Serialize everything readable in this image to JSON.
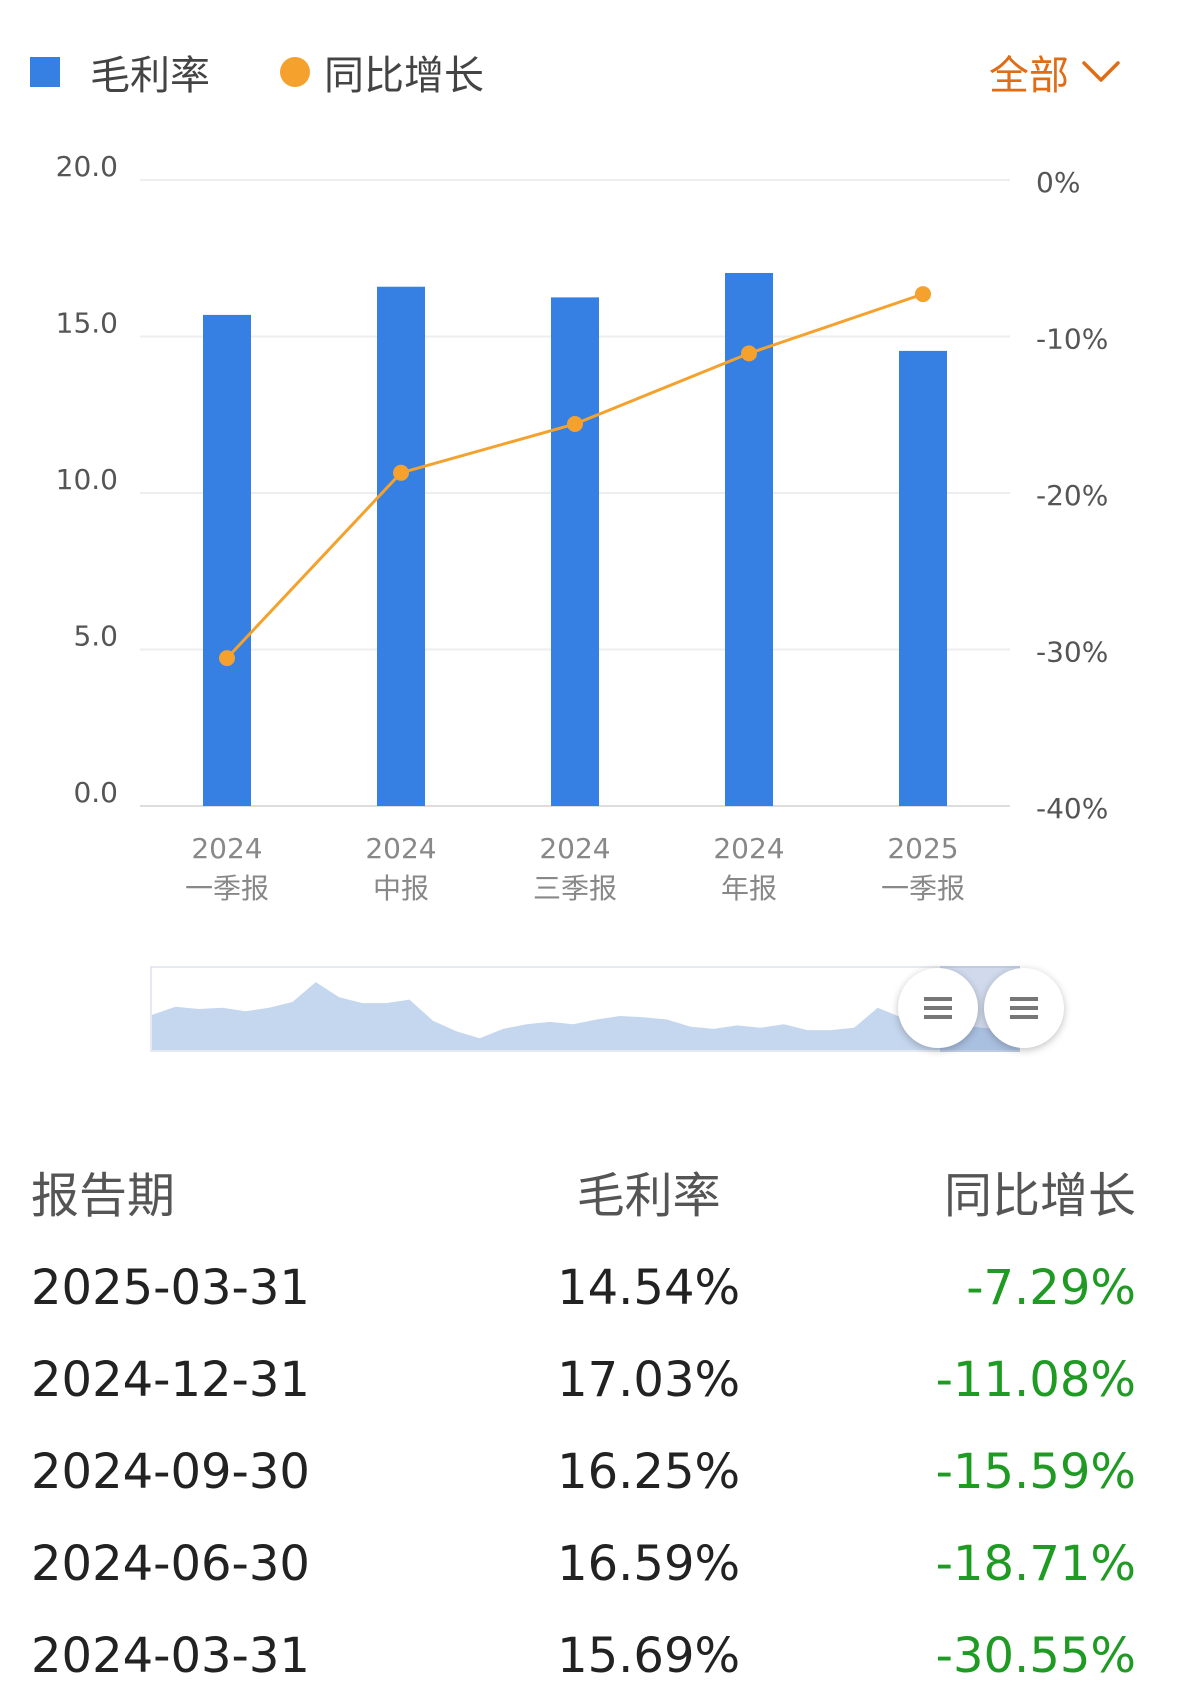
{
  "legend": {
    "bar_label": "毛利率",
    "line_label": "同比增长"
  },
  "filter": {
    "label": "全部",
    "icon": "chevron-down-icon"
  },
  "colors": {
    "bar": "#3580e2",
    "line": "#f4a22d",
    "accent": "#e06c16",
    "negative": "#1f9b24",
    "overview": "#c5d7ee"
  },
  "chart_data": {
    "type": "bar",
    "categories": [
      [
        "2024",
        "一季报"
      ],
      [
        "2024",
        "中报"
      ],
      [
        "2024",
        "三季报"
      ],
      [
        "2024",
        "年报"
      ],
      [
        "2025",
        "一季报"
      ]
    ],
    "series": [
      {
        "name": "毛利率",
        "type": "bar",
        "axis": "left",
        "values": [
          15.69,
          16.59,
          16.25,
          17.03,
          14.54
        ]
      },
      {
        "name": "同比增长",
        "type": "line",
        "axis": "right",
        "values": [
          -30.55,
          -18.71,
          -15.59,
          -11.08,
          -7.29
        ]
      }
    ],
    "y_left": {
      "ylim": [
        0,
        20
      ],
      "ticks": [
        "0.0",
        "5.0",
        "10.0",
        "15.0",
        "20.0"
      ]
    },
    "y_right": {
      "ylim": [
        -40,
        0
      ],
      "ticks": [
        "-40%",
        "-30%",
        "-20%",
        "-10%",
        "0%"
      ]
    },
    "grid": true,
    "legend_position": "top-left"
  },
  "overview": {
    "values": [
      30,
      37,
      35,
      36,
      33,
      36,
      41,
      58,
      45,
      40,
      40,
      43,
      25,
      16,
      10,
      18,
      22,
      24,
      22,
      26,
      29,
      28,
      26,
      20,
      18,
      21,
      19,
      22,
      17,
      17,
      19,
      36,
      28,
      24,
      22,
      20,
      18,
      20
    ]
  },
  "table": {
    "headers": [
      "报告期",
      "毛利率",
      "同比增长"
    ],
    "rows": [
      [
        "2025-03-31",
        "14.54%",
        "-7.29%"
      ],
      [
        "2024-12-31",
        "17.03%",
        "-11.08%"
      ],
      [
        "2024-09-30",
        "16.25%",
        "-15.59%"
      ],
      [
        "2024-06-30",
        "16.59%",
        "-18.71%"
      ],
      [
        "2024-03-31",
        "15.69%",
        "-30.55%"
      ]
    ]
  }
}
